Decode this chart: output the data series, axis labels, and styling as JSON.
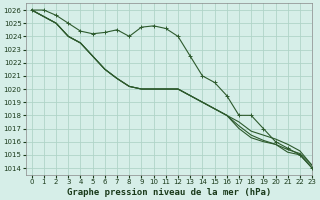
{
  "title": "Graphe pression niveau de la mer (hPa)",
  "bg_color": "#d6eee8",
  "grid_color": "#b0d4c8",
  "line_color": "#2d5a2d",
  "ylim": [
    1013.5,
    1026.5
  ],
  "xlim": [
    -0.5,
    23
  ],
  "yticks": [
    1014,
    1015,
    1016,
    1017,
    1018,
    1019,
    1020,
    1021,
    1022,
    1023,
    1024,
    1025,
    1026
  ],
  "xticks": [
    0,
    1,
    2,
    3,
    4,
    5,
    6,
    7,
    8,
    9,
    10,
    11,
    12,
    13,
    14,
    15,
    16,
    17,
    18,
    19,
    20,
    21,
    22,
    23
  ],
  "series_marked": [
    1026,
    1026,
    1025.6,
    1025.0,
    1024.4,
    1024.2,
    1024.3,
    1024.5,
    1024.0,
    1024.7,
    1024.8,
    1024.6,
    1024.0,
    1022.5,
    1021.0,
    1020.5,
    1019.5,
    1018.0,
    1018.0,
    1017.0,
    1016.0,
    1015.5,
    1015.0,
    1014.0
  ],
  "series_plain": [
    [
      1026,
      1025.5,
      1025.0,
      1024.0,
      1023.5,
      1022.5,
      1021.5,
      1020.8,
      1020.2,
      1020.0,
      1020.0,
      1020.0,
      1020.0,
      1019.5,
      1019.0,
      1018.5,
      1018.0,
      1017.5,
      1016.8,
      1016.5,
      1016.2,
      1015.8,
      1015.3,
      1014.2
    ],
    [
      1026,
      1025.5,
      1025.0,
      1024.0,
      1023.5,
      1022.5,
      1021.5,
      1020.8,
      1020.2,
      1020.0,
      1020.0,
      1020.0,
      1020.0,
      1019.5,
      1019.0,
      1018.5,
      1018.0,
      1017.2,
      1016.5,
      1016.1,
      1015.8,
      1015.4,
      1015.1,
      1014.2
    ],
    [
      1026,
      1025.5,
      1025.0,
      1024.0,
      1023.5,
      1022.5,
      1021.5,
      1020.8,
      1020.2,
      1020.0,
      1020.0,
      1020.0,
      1020.0,
      1019.5,
      1019.0,
      1018.5,
      1018.0,
      1017.0,
      1016.3,
      1016.0,
      1015.8,
      1015.2,
      1015.0,
      1014.0
    ]
  ],
  "fontsize_title": 6.5,
  "fontsize_tick": 5.0,
  "tick_color": "#1a3a1a"
}
